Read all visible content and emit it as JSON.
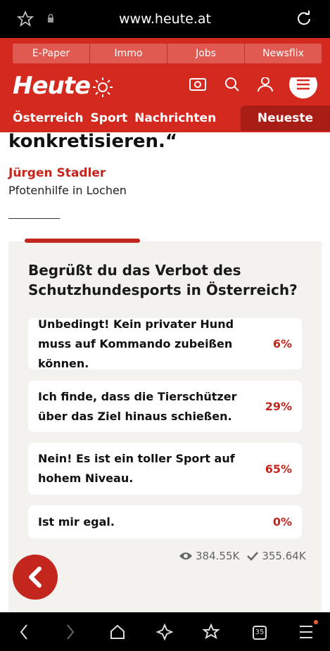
{
  "browser": {
    "url": "www.heute.at",
    "tab_count": "35"
  },
  "header": {
    "tabs": [
      "E-Paper",
      "Immo",
      "Jobs",
      "Newsflix"
    ],
    "logo": "Heute",
    "sections": [
      "Österreich",
      "Sport",
      "Nachrichten"
    ],
    "active_section": "Neueste"
  },
  "article": {
    "quote_end": "konkretisieren.“",
    "author": "Jürgen Stadler",
    "author_role": "Pfotenhilfe in Lochen"
  },
  "poll": {
    "question": "Begrüßt du das Verbot des Schutzhundesports in Österreich?",
    "options": [
      {
        "text": "Unbedingt! Kein privater Hund muss auf Kommando zubeißen können.",
        "percent": "6%"
      },
      {
        "text": "Ich finde, dass die Tierschützer über das Ziel hinaus schießen.",
        "percent": "29%"
      },
      {
        "text": "Nein! Es ist ein toller Sport auf hohem Niveau.",
        "percent": "65%"
      },
      {
        "text": "Ist mir egal.",
        "percent": "0%"
      }
    ],
    "views": "384.55K",
    "votes": "355.64K"
  }
}
